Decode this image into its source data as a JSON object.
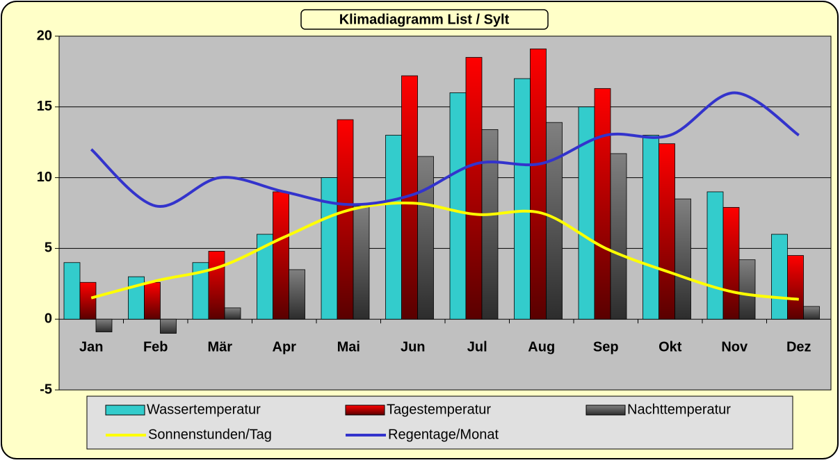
{
  "chart_data": {
    "type": "bar",
    "title": "Klimadiagramm List / Sylt",
    "categories": [
      "Jan",
      "Feb",
      "Mär",
      "Apr",
      "Mai",
      "Jun",
      "Jul",
      "Aug",
      "Sep",
      "Okt",
      "Nov",
      "Dez"
    ],
    "series": [
      {
        "name": "Wassertemperatur",
        "type": "bar",
        "color": "#33cccc",
        "values": [
          4,
          3,
          4,
          6,
          10,
          13,
          16,
          17,
          15,
          13,
          9,
          6
        ]
      },
      {
        "name": "Tagestemperatur",
        "type": "bar",
        "color": "#ff0000",
        "values": [
          2.6,
          2.6,
          4.8,
          9,
          14.1,
          17.2,
          18.5,
          19.1,
          16.3,
          12.4,
          7.9,
          4.5
        ]
      },
      {
        "name": "Nachttemperatur",
        "type": "bar",
        "color": "#808080",
        "values": [
          -0.9,
          -1,
          0.8,
          3.5,
          8,
          11.5,
          13.4,
          13.9,
          11.7,
          8.5,
          4.2,
          0.9
        ]
      },
      {
        "name": "Sonnenstunden/Tag",
        "type": "line",
        "color": "#ffff00",
        "values": [
          1.5,
          2.7,
          3.7,
          5.8,
          7.7,
          8.2,
          7.4,
          7.5,
          5,
          3.3,
          1.9,
          1.4
        ]
      },
      {
        "name": "Regentage/Monat",
        "type": "line",
        "color": "#3333cc",
        "values": [
          12,
          8,
          10,
          9,
          8.1,
          8.8,
          11,
          11,
          13,
          13,
          16,
          13
        ]
      }
    ],
    "ylim": [
      -5,
      20
    ],
    "yticks": [
      -5,
      0,
      5,
      10,
      15,
      20
    ],
    "grid": true
  }
}
